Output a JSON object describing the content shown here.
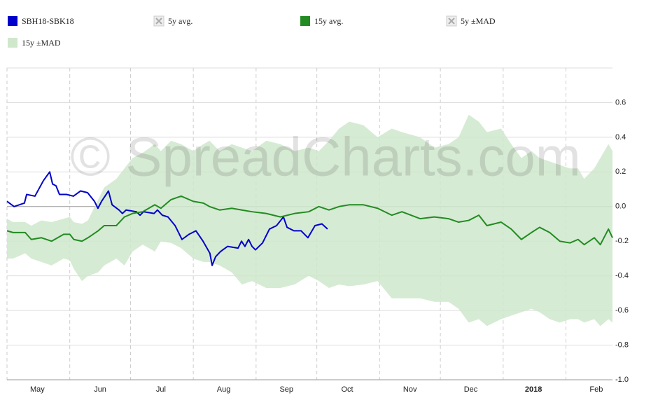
{
  "chart_data": {
    "type": "line",
    "watermark": "© SpreadCharts.com",
    "xlim": [
      0,
      299
    ],
    "ylim": [
      -1.0,
      0.8
    ],
    "yticks": [
      {
        "value": -1.0,
        "label": "-1.0"
      },
      -0.8,
      -0.6,
      -0.4,
      -0.2,
      {
        "value": 0,
        "label": "0.0"
      },
      0.2,
      0.4,
      0.6
    ],
    "xticks": [
      {
        "value": 15,
        "label": "May"
      },
      {
        "value": 46,
        "label": "Jun"
      },
      {
        "value": 76,
        "label": "Jul"
      },
      {
        "value": 107,
        "label": "Aug"
      },
      {
        "value": 138,
        "label": "Sep"
      },
      {
        "value": 168,
        "label": "Oct"
      },
      {
        "value": 199,
        "label": "Nov"
      },
      {
        "value": 229,
        "label": "Dec"
      },
      {
        "value": 260,
        "label": "2018",
        "bold": true
      },
      {
        "value": 291,
        "label": "Feb"
      }
    ],
    "xgrid": [
      0,
      31,
      61,
      92,
      123,
      153,
      184,
      214,
      245,
      276
    ],
    "grid": true,
    "series": [
      {
        "name": "SBH18-SBK18",
        "color": "#0000cc",
        "kind": "line",
        "x": [
          0,
          3.5,
          8.6,
          9.7,
          13.8,
          18.0,
          21.1,
          22.5,
          24.2,
          25.9,
          29.4,
          32.8,
          36.3,
          39.8,
          43.2,
          44.9,
          46.7,
          50.1,
          51.9,
          55.3,
          57.0,
          58.8,
          63.9,
          65.7,
          67.4,
          72.6,
          74.3,
          76.7,
          79.5,
          83.0,
          86.4,
          89.9,
          93.3,
          96.8,
          100.2,
          101.3,
          103.0,
          105.4,
          108.9,
          114.1,
          115.8,
          117.5,
          119.3,
          121.0,
          122.7,
          126.2,
          129.6,
          133.1,
          136.5,
          138.3,
          141.7,
          145.2,
          148.6,
          152.1,
          155.5,
          158.3
        ],
        "values": [
          0.03,
          0.0,
          0.02,
          0.07,
          0.06,
          0.15,
          0.2,
          0.13,
          0.12,
          0.07,
          0.07,
          0.06,
          0.09,
          0.08,
          0.03,
          -0.01,
          0.03,
          0.09,
          0.01,
          -0.02,
          -0.04,
          -0.02,
          -0.03,
          -0.05,
          -0.03,
          -0.04,
          -0.02,
          -0.05,
          -0.06,
          -0.11,
          -0.19,
          -0.16,
          -0.14,
          -0.2,
          -0.27,
          -0.34,
          -0.29,
          -0.26,
          -0.23,
          -0.24,
          -0.2,
          -0.23,
          -0.19,
          -0.23,
          -0.25,
          -0.21,
          -0.13,
          -0.11,
          -0.06,
          -0.12,
          -0.14,
          -0.14,
          -0.18,
          -0.11,
          -0.1,
          -0.13
        ]
      },
      {
        "name": "5y avg.",
        "kind": "hidden"
      },
      {
        "name": "15y avg.",
        "color": "#228b22",
        "kind": "line",
        "x": [
          0,
          3,
          9,
          12,
          17,
          22,
          28,
          31,
          33,
          37,
          40,
          45,
          48,
          54,
          58,
          62,
          67,
          73,
          76,
          81,
          86,
          92,
          97,
          100,
          105,
          111,
          116,
          121,
          128,
          135,
          142,
          149,
          154,
          159,
          164,
          169,
          176,
          183,
          190,
          195,
          204,
          211,
          218,
          223,
          228,
          233,
          237,
          244,
          249,
          254,
          259,
          263,
          268,
          273,
          278,
          282,
          285,
          290,
          293,
          297,
          299
        ],
        "values": [
          -0.14,
          -0.15,
          -0.15,
          -0.19,
          -0.18,
          -0.2,
          -0.16,
          -0.16,
          -0.19,
          -0.2,
          -0.18,
          -0.14,
          -0.11,
          -0.11,
          -0.06,
          -0.04,
          -0.03,
          0.01,
          -0.01,
          0.04,
          0.06,
          0.03,
          0.02,
          0.0,
          -0.02,
          -0.01,
          -0.02,
          -0.03,
          -0.04,
          -0.06,
          -0.04,
          -0.03,
          0.0,
          -0.02,
          0.0,
          0.01,
          0.01,
          -0.01,
          -0.05,
          -0.03,
          -0.07,
          -0.06,
          -0.07,
          -0.09,
          -0.08,
          -0.05,
          -0.11,
          -0.09,
          -0.13,
          -0.19,
          -0.15,
          -0.12,
          -0.15,
          -0.2,
          -0.21,
          -0.19,
          -0.22,
          -0.18,
          -0.22,
          -0.13,
          -0.18
        ]
      },
      {
        "name": "5y ±MAD",
        "kind": "hidden"
      },
      {
        "name": "15y ±MAD",
        "color": "#cfe8cb",
        "kind": "band",
        "x": [
          0,
          3,
          9,
          12,
          17,
          22,
          28,
          31,
          33,
          37,
          40,
          45,
          48,
          54,
          58,
          62,
          67,
          73,
          76,
          81,
          86,
          92,
          97,
          100,
          105,
          111,
          116,
          121,
          128,
          135,
          142,
          149,
          154,
          159,
          164,
          169,
          176,
          183,
          190,
          195,
          204,
          211,
          218,
          223,
          228,
          233,
          237,
          244,
          249,
          254,
          259,
          263,
          268,
          273,
          278,
          282,
          285,
          290,
          293,
          297,
          299
        ],
        "upper": [
          -0.07,
          -0.09,
          -0.09,
          -0.11,
          -0.08,
          -0.09,
          -0.07,
          -0.06,
          -0.09,
          -0.1,
          -0.08,
          0.04,
          0.11,
          0.16,
          0.22,
          0.28,
          0.31,
          0.36,
          0.32,
          0.38,
          0.36,
          0.32,
          0.36,
          0.38,
          0.32,
          0.36,
          0.34,
          0.32,
          0.38,
          0.36,
          0.32,
          0.34,
          0.32,
          0.38,
          0.45,
          0.49,
          0.47,
          0.4,
          0.45,
          0.43,
          0.4,
          0.34,
          0.36,
          0.4,
          0.53,
          0.49,
          0.43,
          0.45,
          0.36,
          0.28,
          0.32,
          0.28,
          0.26,
          0.24,
          0.22,
          0.22,
          0.16,
          0.22,
          0.28,
          0.36,
          0.32
        ],
        "lower": [
          -0.3,
          -0.3,
          -0.27,
          -0.3,
          -0.32,
          -0.34,
          -0.3,
          -0.31,
          -0.36,
          -0.43,
          -0.4,
          -0.38,
          -0.34,
          -0.3,
          -0.34,
          -0.26,
          -0.22,
          -0.26,
          -0.2,
          -0.21,
          -0.24,
          -0.3,
          -0.32,
          -0.32,
          -0.34,
          -0.38,
          -0.45,
          -0.43,
          -0.47,
          -0.47,
          -0.45,
          -0.4,
          -0.43,
          -0.47,
          -0.45,
          -0.46,
          -0.45,
          -0.43,
          -0.53,
          -0.53,
          -0.53,
          -0.55,
          -0.55,
          -0.59,
          -0.67,
          -0.65,
          -0.69,
          -0.65,
          -0.63,
          -0.61,
          -0.59,
          -0.61,
          -0.65,
          -0.67,
          -0.65,
          -0.65,
          -0.67,
          -0.65,
          -0.69,
          -0.65,
          -0.67
        ]
      }
    ]
  }
}
